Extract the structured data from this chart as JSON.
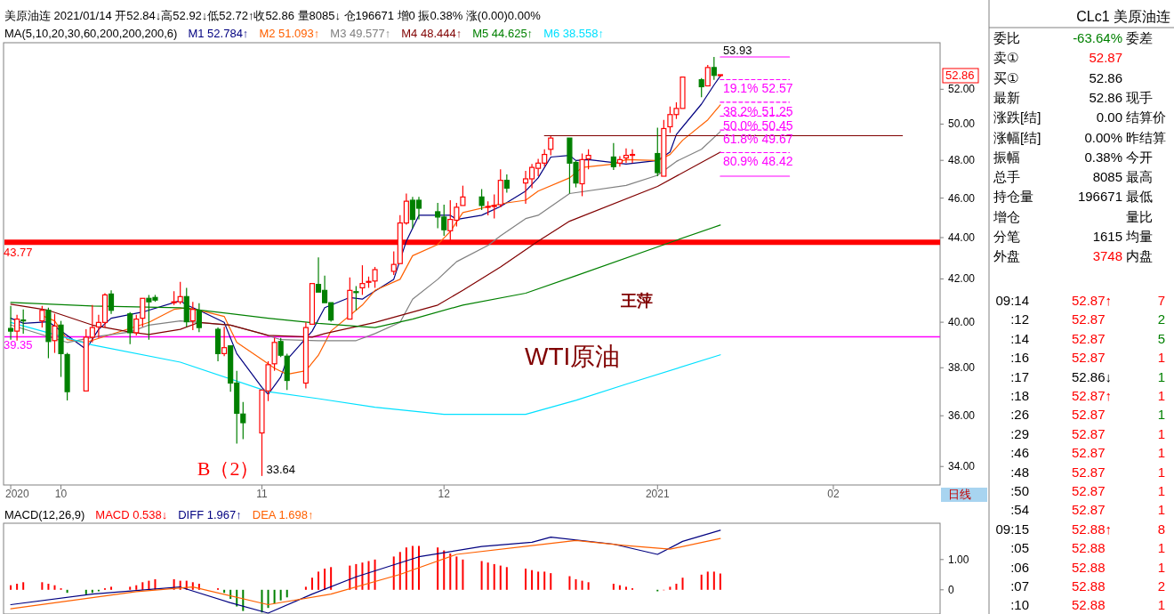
{
  "chart_data": [
    {
      "type": "candlestick",
      "title": "美原油连 2021/01/14 开52.84↓高52.92↓低52.72↑收52.86 量8085↓ 仓196671 增0 振0.38% 涨(0.00)0.00%",
      "subtitle": "MA(5,10,20,30,60,200,200,200,6)",
      "legend": "top left",
      "log": "y",
      "x": [
        "2020-09-23",
        "2020-09-24",
        "2020-09-25",
        "2020-09-28",
        "2020-09-29",
        "2020-09-30",
        "2020-10-01",
        "2020-10-02",
        "2020-10-05",
        "2020-10-06",
        "2020-10-07",
        "2020-10-08",
        "2020-10-09",
        "2020-10-12",
        "2020-10-13",
        "2020-10-14",
        "2020-10-15",
        "2020-10-16",
        "2020-10-19",
        "2020-10-20",
        "2020-10-21",
        "2020-10-22",
        "2020-10-23",
        "2020-10-26",
        "2020-10-27",
        "2020-10-28",
        "2020-10-29",
        "2020-10-30",
        "2020-11-02",
        "2020-11-03",
        "2020-11-04",
        "2020-11-05",
        "2020-11-06",
        "2020-11-09",
        "2020-11-10",
        "2020-11-11",
        "2020-11-12",
        "2020-11-13",
        "2020-11-16",
        "2020-11-17",
        "2020-11-18",
        "2020-11-19",
        "2020-11-20",
        "2020-11-23",
        "2020-11-24",
        "2020-11-25",
        "2020-11-26",
        "2020-11-27",
        "2020-11-30",
        "2020-12-01",
        "2020-12-02",
        "2020-12-03",
        "2020-12-04",
        "2020-12-07",
        "2020-12-08",
        "2020-12-09",
        "2020-12-10",
        "2020-12-11",
        "2020-12-14",
        "2020-12-15",
        "2020-12-16",
        "2020-12-17",
        "2020-12-18",
        "2020-12-21",
        "2020-12-22",
        "2020-12-23",
        "2020-12-24",
        "2020-12-28",
        "2020-12-29",
        "2020-12-30",
        "2020-12-31",
        "2021-01-04",
        "2021-01-05",
        "2021-01-06",
        "2021-01-07",
        "2021-01-08",
        "2021-01-11",
        "2021-01-12",
        "2021-01-13",
        "2021-01-14"
      ],
      "ohlc": [
        [
          39.72,
          40.74,
          39.22,
          39.6
        ],
        [
          39.6,
          40.34,
          39.18,
          40.14
        ],
        [
          40.1,
          40.58,
          39.49,
          40.06
        ],
        [
          40.06,
          40.74,
          39.76,
          40.54
        ],
        [
          40.54,
          40.66,
          38.41,
          39.14
        ],
        [
          39.18,
          40.38,
          38.64,
          39.83
        ],
        [
          39.87,
          40.06,
          37.61,
          38.61
        ],
        [
          38.57,
          38.64,
          36.63,
          36.99
        ],
        [
          37.02,
          39.68,
          36.99,
          39.33
        ],
        [
          39.33,
          40.78,
          39.1,
          39.76
        ],
        [
          39.79,
          40.34,
          39.3,
          39.99
        ],
        [
          39.99,
          41.33,
          39.76,
          41.25
        ],
        [
          41.29,
          41.46,
          40.38,
          40.54
        ],
        [
          40.38,
          40.46,
          39.02,
          39.53
        ],
        [
          39.53,
          40.34,
          39.41,
          40.14
        ],
        [
          40.18,
          41.13,
          39.79,
          41.09
        ],
        [
          41.09,
          41.25,
          39.22,
          40.93
        ],
        [
          41.13,
          41.25,
          40.93,
          41.01
        ],
        [
          40.89,
          41.42,
          40.78,
          40.93
        ],
        [
          40.93,
          41.86,
          40.82,
          41.17
        ],
        [
          41.17,
          41.58,
          39.79,
          40.02
        ],
        [
          40.06,
          40.93,
          39.64,
          40.58
        ],
        [
          40.54,
          40.86,
          39.56,
          39.76
        ],
        [
          39.68,
          39.76,
          38.28,
          38.61
        ],
        [
          38.61,
          39.79,
          38.5,
          38.87
        ],
        [
          38.95,
          38.99,
          36.99,
          37.35
        ],
        [
          37.35,
          37.87,
          34.89,
          36.1
        ],
        [
          36.07,
          36.56,
          35.06,
          35.72
        ],
        [
          35.31,
          37.06,
          33.64,
          37.06
        ],
        [
          37.02,
          38.28,
          36.6,
          38.13
        ],
        [
          38.17,
          39.3,
          37.87,
          39.1
        ],
        [
          39.14,
          39.3,
          38.46,
          38.54
        ],
        [
          38.5,
          38.61,
          37.06,
          37.46
        ],
        [
          37.35,
          39.99,
          37.13,
          39.76
        ],
        [
          39.91,
          41.78,
          39.87,
          41.78
        ],
        [
          41.74,
          43.03,
          41.33,
          41.38
        ],
        [
          41.46,
          42.15,
          40.86,
          40.89
        ],
        [
          40.89,
          40.89,
          40.02,
          40.1
        ],
        [
          40.14,
          42.07,
          40.14,
          41.46
        ],
        [
          41.4,
          41.66,
          40.54,
          41.36
        ],
        [
          41.58,
          42.65,
          41.25,
          41.78
        ],
        [
          41.84,
          42.11,
          41.58,
          41.88
        ],
        [
          41.9,
          42.57,
          41.58,
          42.44
        ],
        [
          42.36,
          43.32,
          42.19,
          42.69
        ],
        [
          42.73,
          45.13,
          42.73,
          44.73
        ],
        [
          44.73,
          46.24,
          44.64,
          45.84
        ],
        [
          45.89,
          46.06,
          44.47,
          44.91
        ],
        [
          45.89,
          46.06,
          44.91,
          45.48
        ],
        [
          45.3,
          45.75,
          44.47,
          45.03
        ],
        [
          45.03,
          45.66,
          44.09,
          44.39
        ],
        [
          44.34,
          45.89,
          43.87,
          44.91
        ],
        [
          44.87,
          45.75,
          44.56,
          45.53
        ],
        [
          45.62,
          46.65,
          45.57,
          46.06
        ],
        [
          46.06,
          46.47,
          45.39,
          45.62
        ],
        [
          45.57,
          45.84,
          45.12,
          45.57
        ],
        [
          45.57,
          46.19,
          44.96,
          45.62
        ],
        [
          45.66,
          47.52,
          45.53,
          46.93
        ],
        [
          46.93,
          47.24,
          46.29,
          46.52
        ],
        [
          46.79,
          47.43,
          45.71,
          47.01
        ],
        [
          47.01,
          47.8,
          46.52,
          47.62
        ],
        [
          47.57,
          48.08,
          47.15,
          47.85
        ],
        [
          47.85,
          48.6,
          47.66,
          48.32
        ],
        [
          48.6,
          49.32,
          48.27,
          49.22
        ],
        [
          49.22,
          49.27,
          46.24,
          47.85
        ],
        [
          47.89,
          47.99,
          46.56,
          46.79
        ],
        [
          46.75,
          48.37,
          46.1,
          48.04
        ],
        [
          48.08,
          48.6,
          47.52,
          48.27
        ],
        [
          48.18,
          48.94,
          47.48,
          47.66
        ],
        [
          47.85,
          48.23,
          47.66,
          48.04
        ],
        [
          48.13,
          48.65,
          47.85,
          48.27
        ],
        [
          48.28,
          48.6,
          47.85,
          48.32
        ],
        [
          48.37,
          49.8,
          47.15,
          47.34
        ],
        [
          47.15,
          50.24,
          47.15,
          49.75
        ],
        [
          49.85,
          51.0,
          49.51,
          50.54
        ],
        [
          50.54,
          51.24,
          50.29,
          50.89
        ],
        [
          50.89,
          52.72,
          50.84,
          52.72
        ],
        [
          52.56,
          52.66,
          51.54,
          52.15
        ],
        [
          52.2,
          53.44,
          52.15,
          53.29
        ],
        [
          53.29,
          53.93,
          52.56,
          52.82
        ],
        [
          52.84,
          52.92,
          52.72,
          52.86
        ]
      ],
      "xlim": [
        "2020-09-22",
        "2021-02-18"
      ],
      "xticks": [
        {
          "value": "2020-09-23",
          "label": "2020"
        },
        {
          "value": "2020-10-01",
          "label": "10"
        },
        {
          "value": "2020-11-02",
          "label": "11"
        },
        {
          "value": "2020-12-01",
          "label": "12"
        },
        {
          "value": "2021-01-04",
          "label": "2021"
        },
        {
          "value": "2021-02-01",
          "label": "02"
        }
      ],
      "ylim": [
        33.3,
        54.8
      ],
      "yticks": [
        {
          "value": 52,
          "label": "52.00"
        },
        {
          "value": 50,
          "label": "50.00"
        },
        {
          "value": 48,
          "label": "48.00"
        },
        {
          "value": 46,
          "label": "46.00"
        },
        {
          "value": 44,
          "label": "44.00"
        },
        {
          "value": 42,
          "label": "42.00"
        },
        {
          "value": 40,
          "label": "40.00"
        },
        {
          "value": 38,
          "label": "38.00"
        },
        {
          "value": 36,
          "label": "36.00"
        },
        {
          "value": 34,
          "label": "34.00"
        }
      ],
      "series": [
        {
          "type": "line",
          "name": "M1 52.784↑",
          "color": "#000080",
          "x": [
            "2020-09-23",
            "2020-09-25",
            "2020-09-29",
            "2020-10-05",
            "2020-10-07",
            "2020-10-09",
            "2020-10-14",
            "2020-10-20",
            "2020-10-21",
            "2020-10-23",
            "2020-10-27",
            "2020-10-29",
            "2020-11-02",
            "2020-11-03",
            "2020-11-05",
            "2020-11-06",
            "2020-11-10",
            "2020-11-12",
            "2020-11-16",
            "2020-11-18",
            "2020-11-19",
            "2020-11-23",
            "2020-11-25",
            "2020-11-27",
            "2020-12-02",
            "2020-12-03",
            "2020-12-07",
            "2020-12-10",
            "2020-12-14",
            "2020-12-16",
            "2020-12-18",
            "2020-12-21",
            "2020-12-22",
            "2020-12-24",
            "2020-12-30",
            "2021-01-04",
            "2021-01-06",
            "2021-01-07",
            "2021-01-11",
            "2021-01-13",
            "2021-01-14"
          ],
          "values": [
            40.18,
            39.95,
            40.02,
            38.8,
            39.68,
            40.18,
            40.46,
            40.98,
            40.78,
            40.54,
            39.99,
            38.61,
            37.17,
            36.88,
            37.61,
            38.35,
            39.6,
            40.66,
            41.13,
            41.05,
            41.25,
            41.98,
            43.83,
            45.12,
            45.12,
            44.91,
            45.12,
            45.57,
            46.37,
            47.06,
            48.18,
            48.27,
            47.99,
            48.04,
            47.8,
            47.99,
            48.46,
            49.42,
            51.14,
            52.25,
            52.784
          ]
        },
        {
          "type": "line",
          "name": "M2 51.093↑",
          "color": "#ff6000",
          "x": [
            "2020-09-28",
            "2020-09-30",
            "2020-10-02",
            "2020-10-05",
            "2020-10-15",
            "2020-10-19",
            "2020-10-21",
            "2020-10-23",
            "2020-10-27",
            "2020-10-29",
            "2020-11-02",
            "2020-11-04",
            "2020-11-06",
            "2020-11-09",
            "2020-11-11",
            "2020-11-13",
            "2020-11-18",
            "2020-11-20",
            "2020-11-24",
            "2020-11-26",
            "2020-11-30",
            "2020-12-02",
            "2020-12-04",
            "2020-12-10",
            "2020-12-14",
            "2020-12-16",
            "2020-12-21",
            "2020-12-23",
            "2020-12-28",
            "2020-12-30",
            "2021-01-04",
            "2021-01-06",
            "2021-01-08",
            "2021-01-12",
            "2021-01-14"
          ],
          "values": [
            40.3,
            40.06,
            39.22,
            39.1,
            39.99,
            40.58,
            40.66,
            40.54,
            40.26,
            39.1,
            38.35,
            37.98,
            37.72,
            37.87,
            38.54,
            39.6,
            40.78,
            41.46,
            41.98,
            43.11,
            43.66,
            44.3,
            45.26,
            45.71,
            45.89,
            46.37,
            47.06,
            47.62,
            47.8,
            48.04,
            47.99,
            48.32,
            49.1,
            50.24,
            51.093
          ]
        },
        {
          "type": "line",
          "name": "M3 49.577↑",
          "color": "#808080",
          "x": [
            "2020-09-23",
            "2020-10-02",
            "2020-10-07",
            "2020-10-12",
            "2020-10-15",
            "2020-10-20",
            "2020-10-23",
            "2020-10-28",
            "2020-11-02",
            "2020-11-05",
            "2020-11-11",
            "2020-11-17",
            "2020-11-20",
            "2020-11-24",
            "2020-11-26",
            "2020-11-30",
            "2020-12-03",
            "2020-12-08",
            "2020-12-10",
            "2020-12-14",
            "2020-12-16",
            "2020-12-21",
            "2020-12-30",
            "2021-01-04",
            "2021-01-07",
            "2021-01-11",
            "2021-01-14"
          ],
          "values": [
            39.87,
            39.1,
            39.37,
            39.56,
            39.87,
            40.06,
            39.99,
            39.87,
            39.49,
            39.22,
            39.18,
            39.18,
            39.49,
            39.99,
            41.05,
            41.98,
            42.82,
            43.62,
            44.09,
            44.95,
            45.12,
            46.24,
            46.66,
            47.2,
            47.94,
            48.6,
            49.577
          ]
        },
        {
          "type": "line",
          "name": "M4 48.444↑",
          "color": "#800000",
          "x": [
            "2020-09-23",
            "2020-09-29",
            "2020-10-06",
            "2020-10-12",
            "2020-10-15",
            "2020-10-20",
            "2020-10-23",
            "2020-10-28",
            "2020-11-03",
            "2020-11-10",
            "2020-11-12",
            "2020-11-20",
            "2020-11-30",
            "2020-12-04",
            "2020-12-10",
            "2020-12-16",
            "2020-12-21",
            "2021-01-04",
            "2021-01-14"
          ],
          "values": [
            40.82,
            40.54,
            39.87,
            39.56,
            39.45,
            39.68,
            39.99,
            39.87,
            39.41,
            39.33,
            39.49,
            39.99,
            40.78,
            41.46,
            42.57,
            43.83,
            44.82,
            46.61,
            48.444
          ]
        },
        {
          "type": "line",
          "name": "M5 44.625↑",
          "color": "#008000",
          "x": [
            "2020-09-23",
            "2020-10-06",
            "2020-10-20",
            "2020-11-03",
            "2020-11-11",
            "2020-11-20",
            "2020-11-26",
            "2020-12-04",
            "2020-12-14",
            "2020-12-22",
            "2021-01-07",
            "2021-01-14"
          ],
          "values": [
            40.9,
            40.74,
            40.66,
            40.18,
            39.95,
            39.76,
            40.14,
            40.78,
            41.33,
            42.15,
            43.87,
            44.625
          ]
        },
        {
          "type": "line",
          "name": "M6 38.558↑",
          "color": "#00e0ff",
          "x": [
            "2020-09-23",
            "2020-10-06",
            "2020-10-20",
            "2020-11-03",
            "2020-11-11",
            "2020-11-20",
            "2020-12-01",
            "2020-12-14",
            "2020-12-22",
            "2020-12-30",
            "2021-01-14"
          ],
          "values": [
            39.99,
            38.99,
            38.24,
            36.99,
            36.7,
            36.35,
            36.06,
            36.06,
            36.63,
            37.3,
            38.558
          ]
        },
        {
          "type": "line",
          "color": "#800000",
          "x": [
            "2020-12-17",
            "2021-02-12"
          ],
          "values": [
            49.35,
            49.35
          ]
        },
        {
          "type": "line",
          "color": "#ff00ff",
          "x": [
            "2021-01-14",
            "2021-01-25"
          ],
          "values": [
            53.93,
            53.93
          ]
        },
        {
          "type": "line",
          "color": "#ff00ff",
          "line_style": "dashed",
          "x": [
            "2021-01-14",
            "2021-01-25"
          ],
          "values": [
            52.57,
            52.57
          ]
        },
        {
          "type": "line",
          "color": "#ff00ff",
          "line_style": "dashed",
          "x": [
            "2021-01-14",
            "2021-01-25"
          ],
          "values": [
            51.25,
            51.25
          ]
        },
        {
          "type": "line",
          "color": "#ff00ff",
          "line_style": "dashed",
          "x": [
            "2021-01-14",
            "2021-01-25"
          ],
          "values": [
            50.45,
            50.45
          ]
        },
        {
          "type": "line",
          "color": "#ff00ff",
          "line_style": "dashed",
          "x": [
            "2021-01-14",
            "2021-01-25"
          ],
          "values": [
            49.67,
            49.67
          ]
        },
        {
          "type": "line",
          "color": "#ff00ff",
          "line_style": "dashed",
          "x": [
            "2021-01-14",
            "2021-01-25"
          ],
          "values": [
            48.42,
            48.42
          ]
        },
        {
          "type": "line",
          "color": "#ff00ff",
          "x": [
            "2021-01-14",
            "2021-01-25"
          ],
          "values": [
            47.15,
            47.15
          ]
        }
      ],
      "ref_lines": [
        {
          "axis": "y",
          "value": 43.77,
          "label": "43.77",
          "color": "#ff0000"
        },
        {
          "axis": "y",
          "value": 39.35,
          "label": "39.35",
          "color": "#ff00ff"
        }
      ],
      "annotations": [
        {
          "text": "53.93",
          "x": "2021-01-14",
          "y": 53.93
        },
        {
          "text": "19.1% 52.57",
          "x": "2021-01-14",
          "y": 52.57
        },
        {
          "text": "38.2% 51.25",
          "x": "2021-01-14",
          "y": 51.25
        },
        {
          "text": "50.0% 50.45",
          "x": "2021-01-14",
          "y": 50.45
        },
        {
          "text": "61.8% 49.67",
          "x": "2021-01-14",
          "y": 49.67
        },
        {
          "text": "80.9% 48.42",
          "x": "2021-01-14",
          "y": 48.42
        },
        {
          "text": "B（2）",
          "x": "2020-11-02",
          "y": 33.64
        },
        {
          "text": "33.64",
          "x": "2020-11-02",
          "y": 33.64
        },
        "52.86",
        "WTI原油",
        "王萍",
        "日线"
      ]
    },
    {
      "type": "bar",
      "title": "MACD(12,26,9)",
      "legend": "top left",
      "tick_labels": "y",
      "x": [
        "2020-09-23",
        "2020-09-24",
        "2020-09-25",
        "2020-09-28",
        "2020-09-29",
        "2020-09-30",
        "2020-10-01",
        "2020-10-02",
        "2020-10-05",
        "2020-10-06",
        "2020-10-07",
        "2020-10-08",
        "2020-10-09",
        "2020-10-12",
        "2020-10-13",
        "2020-10-14",
        "2020-10-15",
        "2020-10-16",
        "2020-10-19",
        "2020-10-20",
        "2020-10-21",
        "2020-10-22",
        "2020-10-23",
        "2020-10-26",
        "2020-10-27",
        "2020-10-28",
        "2020-10-29",
        "2020-10-30",
        "2020-11-02",
        "2020-11-03",
        "2020-11-04",
        "2020-11-05",
        "2020-11-06",
        "2020-11-09",
        "2020-11-10",
        "2020-11-11",
        "2020-11-12",
        "2020-11-13",
        "2020-11-16",
        "2020-11-17",
        "2020-11-18",
        "2020-11-19",
        "2020-11-20",
        "2020-11-23",
        "2020-11-24",
        "2020-11-25",
        "2020-11-26",
        "2020-11-27",
        "2020-11-30",
        "2020-12-01",
        "2020-12-02",
        "2020-12-03",
        "2020-12-04",
        "2020-12-07",
        "2020-12-08",
        "2020-12-09",
        "2020-12-10",
        "2020-12-11",
        "2020-12-14",
        "2020-12-15",
        "2020-12-16",
        "2020-12-17",
        "2020-12-18",
        "2020-12-21",
        "2020-12-22",
        "2020-12-23",
        "2020-12-24",
        "2020-12-28",
        "2020-12-29",
        "2020-12-30",
        "2020-12-31",
        "2021-01-04",
        "2021-01-05",
        "2021-01-06",
        "2021-01-07",
        "2021-01-08",
        "2021-01-11",
        "2021-01-12",
        "2021-01-13",
        "2021-01-14"
      ],
      "xlim": [
        "2020-09-22",
        "2021-02-18"
      ],
      "ylim": [
        -0.8,
        2.2
      ],
      "yticks": [
        {
          "value": 1,
          "label": "1.00"
        },
        0
      ],
      "series": [
        {
          "type": "bar",
          "name": "MACD 0.538↓",
          "values": [
            0.15,
            0.2,
            0.25,
            0.25,
            0.2,
            0.15,
            0.05,
            -0.1,
            -0.15,
            -0.1,
            -0.05,
            0.05,
            0.1,
            0.1,
            0.15,
            0.25,
            0.3,
            0.35,
            0.35,
            0.3,
            0.3,
            0.25,
            0.2,
            0.05,
            -0.1,
            -0.3,
            -0.55,
            -0.7,
            -0.75,
            -0.6,
            -0.45,
            -0.35,
            -0.25,
            0.1,
            0.4,
            0.6,
            0.7,
            0.75,
            0.8,
            0.85,
            0.9,
            0.95,
            1.0,
            1.1,
            1.25,
            1.4,
            1.45,
            1.45,
            1.4,
            1.3,
            1.2,
            1.1,
            1.0,
            0.95,
            0.9,
            0.85,
            0.8,
            0.75,
            0.7,
            0.65,
            0.6,
            0.6,
            0.55,
            0.45,
            0.35,
            0.3,
            0.25,
            0.2,
            0.15,
            0.1,
            0.05,
            -0.05,
            0.0,
            0.1,
            0.2,
            0.4,
            0.5,
            0.6,
            0.6,
            0.538
          ],
          "colors": [
            "#ff0000",
            "#ff0000",
            "#ff0000",
            "#ff0000",
            "#ff0000",
            "#ff0000",
            "#ff0000",
            "#008000",
            "#008000",
            "#008000",
            "#008000",
            "#ff0000",
            "#ff0000",
            "#ff0000",
            "#ff0000",
            "#ff0000",
            "#ff0000",
            "#ff0000",
            "#ff0000",
            "#ff0000",
            "#ff0000",
            "#ff0000",
            "#ff0000",
            "#ff0000",
            "#008000",
            "#008000",
            "#008000",
            "#008000",
            "#008000",
            "#008000",
            "#008000",
            "#008000",
            "#008000",
            "#ff0000",
            "#ff0000",
            "#ff0000",
            "#ff0000",
            "#ff0000",
            "#ff0000",
            "#ff0000",
            "#ff0000",
            "#ff0000",
            "#ff0000",
            "#ff0000",
            "#ff0000",
            "#ff0000",
            "#ff0000",
            "#ff0000",
            "#ff0000",
            "#ff0000",
            "#ff0000",
            "#ff0000",
            "#ff0000",
            "#ff0000",
            "#ff0000",
            "#ff0000",
            "#ff0000",
            "#ff0000",
            "#ff0000",
            "#ff0000",
            "#ff0000",
            "#ff0000",
            "#ff0000",
            "#ff0000",
            "#ff0000",
            "#ff0000",
            "#ff0000",
            "#ff0000",
            "#ff0000",
            "#ff0000",
            "#ff0000",
            "#008000",
            "#ff0000",
            "#ff0000",
            "#ff0000",
            "#ff0000",
            "#ff0000",
            "#ff0000",
            "#ff0000",
            "#ff0000"
          ],
          "color": "#ff0000"
        },
        {
          "type": "line",
          "name": "DIFF 1.967↑",
          "color": "#000080",
          "x": [
            "2020-09-23",
            "2020-10-06",
            "2020-10-20",
            "2020-10-28",
            "2020-11-03",
            "2020-11-10",
            "2020-11-17",
            "2020-11-27",
            "2020-12-07",
            "2020-12-15",
            "2020-12-18",
            "2020-12-28",
            "2021-01-04",
            "2021-01-08",
            "2021-01-14"
          ],
          "values": [
            -0.49,
            -0.14,
            0.09,
            -0.43,
            -0.77,
            -0.14,
            0.43,
            1.09,
            1.43,
            1.57,
            1.74,
            1.51,
            1.17,
            1.6,
            1.967
          ]
        },
        {
          "type": "line",
          "name": "DEA 1.698↑",
          "color": "#ff6000",
          "x": [
            "2020-09-23",
            "2020-10-13",
            "2020-10-22",
            "2020-11-03",
            "2020-11-13",
            "2020-11-24",
            "2020-12-03",
            "2020-12-15",
            "2020-12-22",
            "2020-12-30",
            "2021-01-06",
            "2021-01-14"
          ],
          "values": [
            -0.63,
            -0.06,
            0.09,
            -0.49,
            -0.14,
            0.51,
            1.17,
            1.46,
            1.63,
            1.46,
            1.34,
            1.698
          ]
        }
      ]
    },
    {
      "type": "other",
      "title": "CLc1 美原油连",
      "y_categories": [
        "委比",
        "卖①",
        "买①",
        "最新",
        "涨跌[结]",
        "涨幅[结]",
        "振幅",
        "总手",
        "持仓量",
        "增仓",
        "分笔",
        "外盘"
      ],
      "cell_labels": [
        [
          "-63.64%",
          "委差"
        ],
        [
          "52.87",
          null
        ],
        [
          "52.86",
          null
        ],
        [
          "52.86",
          "现手"
        ],
        [
          "0.00",
          "结算价"
        ],
        [
          "0.00%",
          "昨结算"
        ],
        [
          "0.38%",
          "今开"
        ],
        [
          "8085",
          "最高"
        ],
        [
          "196671",
          "最低"
        ],
        [
          null,
          "量比"
        ],
        [
          "1615",
          "均量"
        ],
        [
          "3748",
          "内盘"
        ]
      ],
      "colors": [
        "#008000",
        "#ff0000",
        "#000000",
        "#000000",
        "#000000",
        "#000000",
        "#000000",
        "#000000",
        "#000000",
        "#000000",
        "#000000",
        "#ff0000"
      ]
    },
    {
      "type": "other",
      "y_categories": [
        "09:14",
        ":12",
        ":14",
        ":16",
        ":17",
        ":18",
        ":26",
        ":29",
        ":46",
        ":48",
        ":50",
        ":54",
        "09:15",
        ":05",
        ":06",
        ":07",
        ":10"
      ],
      "cell_labels": [
        [
          "52.87↑",
          "7"
        ],
        [
          "52.87",
          "2"
        ],
        [
          "52.87",
          "5"
        ],
        [
          "52.87",
          "1"
        ],
        [
          "52.86↓",
          "1"
        ],
        [
          "52.87↑",
          "1"
        ],
        [
          "52.87",
          "1"
        ],
        [
          "52.87",
          "1"
        ],
        [
          "52.87",
          "1"
        ],
        [
          "52.87",
          "1"
        ],
        [
          "52.87",
          "1"
        ],
        [
          "52.87",
          "1"
        ],
        [
          "52.88↑",
          "8"
        ],
        [
          "52.88",
          "1"
        ],
        [
          "52.88",
          "1"
        ],
        [
          "52.88",
          "2"
        ],
        [
          "52.88",
          "1"
        ]
      ],
      "colors": [
        [
          "#ff0000",
          "#ff0000"
        ],
        [
          "#ff0000",
          "#008000"
        ],
        [
          "#ff0000",
          "#008000"
        ],
        [
          "#ff0000",
          "#ff0000"
        ],
        [
          "#000000",
          "#008000"
        ],
        [
          "#ff0000",
          "#ff0000"
        ],
        [
          "#ff0000",
          "#008000"
        ],
        [
          "#ff0000",
          "#ff0000"
        ],
        [
          "#ff0000",
          "#ff0000"
        ],
        [
          "#ff0000",
          "#ff0000"
        ],
        [
          "#ff0000",
          "#ff0000"
        ],
        [
          "#ff0000",
          "#ff0000"
        ],
        [
          "#ff0000",
          "#ff0000"
        ],
        [
          "#ff0000",
          "#ff0000"
        ],
        [
          "#ff0000",
          "#ff0000"
        ],
        [
          "#ff0000",
          "#ff0000"
        ],
        [
          "#ff0000",
          "#ff0000"
        ]
      ]
    }
  ]
}
